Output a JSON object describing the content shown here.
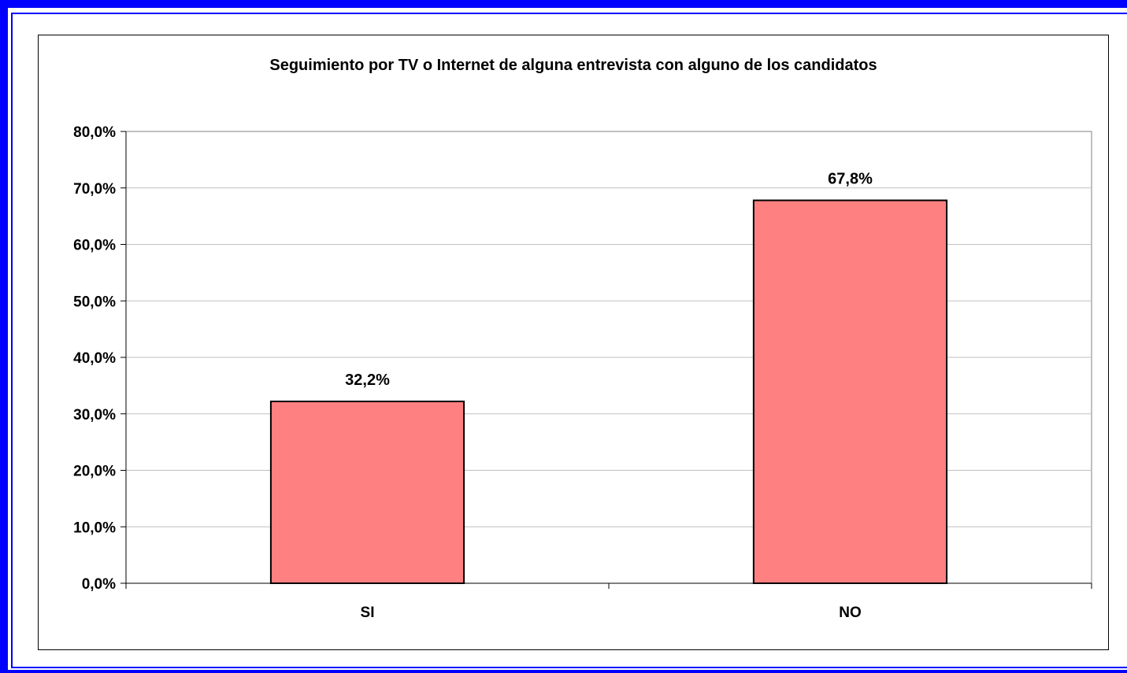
{
  "chart_data": {
    "type": "bar",
    "title": "Seguimiento por TV o Internet de alguna entrevista con alguno de los candidatos",
    "categories": [
      "SI",
      "NO"
    ],
    "values": [
      32.2,
      67.8
    ],
    "data_labels": [
      "32,2%",
      "67,8%"
    ],
    "y_ticks": [
      "0,0%",
      "10,0%",
      "20,0%",
      "30,0%",
      "40,0%",
      "50,0%",
      "60,0%",
      "70,0%",
      "80,0%"
    ],
    "ylim": [
      0,
      80
    ],
    "grid": true,
    "bar_color": "#ff8080"
  }
}
